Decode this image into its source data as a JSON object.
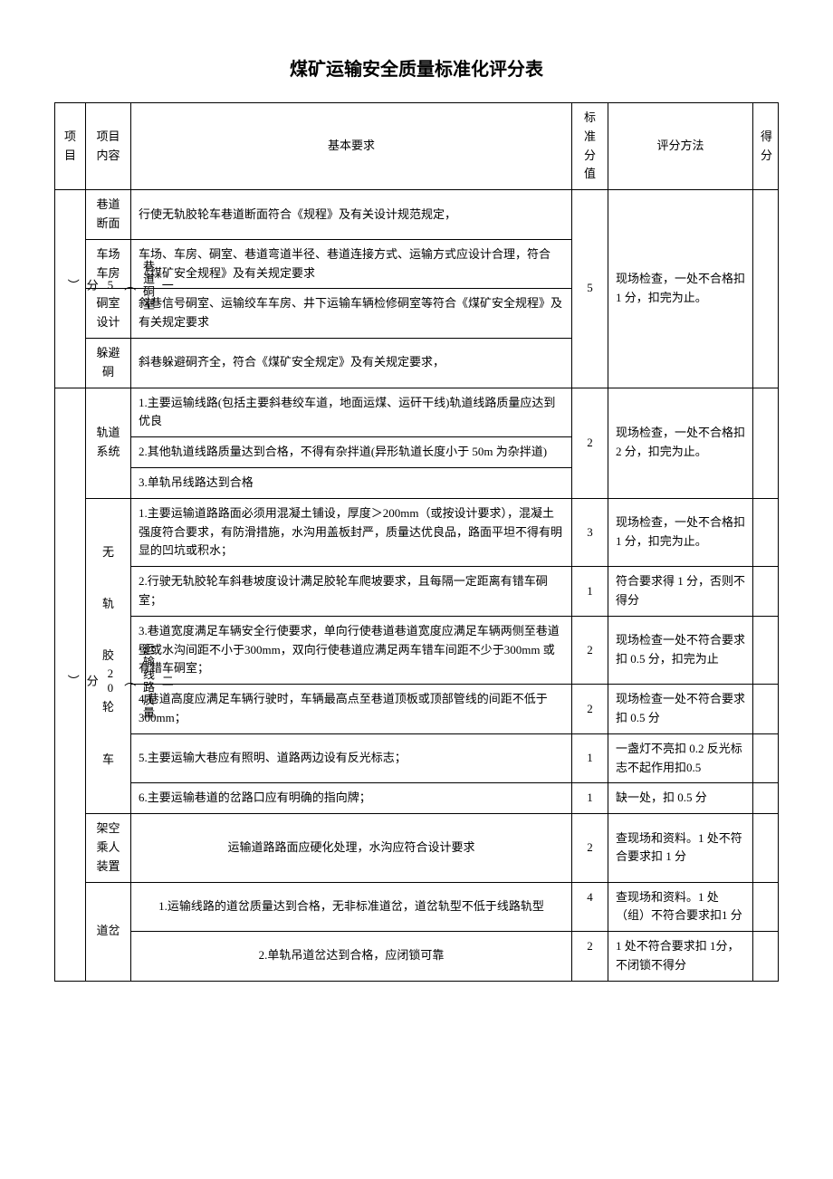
{
  "title": "煤矿运输安全质量标准化评分表",
  "headers": {
    "col1": "项目",
    "col2": "项目内容",
    "col3": "基本要求",
    "col4": "标准分值",
    "col5": "评分方法",
    "col6": "得分"
  },
  "section1": {
    "label": "一\n巷道硐室\n︵\n5\n分\n︶",
    "score": "5",
    "method": "现场检查，一处不合格扣 1 分，扣完为止。",
    "rows": [
      {
        "content": "巷道断面",
        "req": "行使无轨胶轮车巷道断面符合《规程》及有关设计规范规定，"
      },
      {
        "content": "车场车房",
        "req": "车场、车房、硐室、巷道弯道半径、巷道连接方式、运输方式应设计合理，符合《煤矿安全规程》及有关规定要求"
      },
      {
        "content": "硐室设计",
        "req": "斜巷信号硐室、运输绞车车房、井下运输车辆检修硐室等符合《煤矿安全规程》及有关规定要求"
      },
      {
        "content": "躲避硐",
        "req": "斜巷躲避硐齐全，符合《煤矿安全规定》及有关规定要求，"
      }
    ]
  },
  "section2": {
    "label": "二\n运输线路质量\n︵\n20\n分\n︶",
    "g1": {
      "content": "轨道系统",
      "score": "2",
      "method": "现场检查，一处不合格扣 2 分，扣完为止。",
      "rows": [
        {
          "req": "1.主要运输线路(包括主要斜巷绞车道，地面运煤、运矸干线)轨道线路质量应达到优良"
        },
        {
          "req": "2.其他轨道线路质量达到合格，不得有杂拌道(异形轨道长度小于 50m 为杂拌道)"
        },
        {
          "req": "3.单轨吊线路达到合格"
        }
      ]
    },
    "g2": {
      "content_vert": "无\n\n轨\n\n胶\n\n轮\n\n车",
      "rows": [
        {
          "req": "1.主要运输道路路面必须用混凝土铺设，厚度＞200mm（或按设计要求），混凝土强度符合要求，有防滑措施，水沟用盖板封严，质量达优良品，路面平坦不得有明显的凹坑或积水；",
          "score": "3",
          "method": "现场检查，一处不合格扣 1 分，扣完为止。"
        },
        {
          "req": "2.行驶无轨胶轮车斜巷坡度设计满足胶轮车爬坡要求，且每隔一定距离有错车硐室；",
          "score": "1",
          "method": "符合要求得 1 分，否则不得分"
        },
        {
          "req": "3.巷道宽度满足车辆安全行使要求，单向行使巷道巷道宽度应满足车辆两侧至巷道壁或水沟间距不小于300mm，双向行使巷道应满足两车错车间距不少于300mm 或有错车硐室；",
          "score": "2",
          "method": "现场检查一处不符合要求扣 0.5 分，扣完为止"
        },
        {
          "req": "4.巷道高度应满足车辆行驶时，车辆最高点至巷道顶板或顶部管线的间距不低于 300mm；",
          "score": "2",
          "method": "现场检查一处不符合要求扣 0.5 分"
        },
        {
          "req": "5.主要运输大巷应有照明、道路两边设有反光标志；",
          "score": "1",
          "method": "一盏灯不亮扣 0.2 反光标志不起作用扣0.5"
        },
        {
          "req": "6.主要运输巷道的岔路口应有明确的指向牌；",
          "score": "1",
          "method": "缺一处，扣 0.5 分"
        }
      ]
    },
    "g3": {
      "content": "架空乘人装置",
      "req": "运输道路路面应硬化处理，水沟应符合设计要求",
      "score": "2",
      "method": "查现场和资料。1 处不符合要求扣 1 分"
    },
    "g4": {
      "content": "道岔",
      "rows": [
        {
          "req": "1.运输线路的道岔质量达到合格，无非标准道岔，道岔轨型不低于线路轨型",
          "score": "4",
          "method": "查现场和资料。1 处（组）不符合要求扣1 分"
        },
        {
          "req": "2.单轨吊道岔达到合格，应闭锁可靠",
          "score": "2",
          "method": "1 处不符合要求扣 1分，不闭锁不得分"
        }
      ]
    }
  }
}
